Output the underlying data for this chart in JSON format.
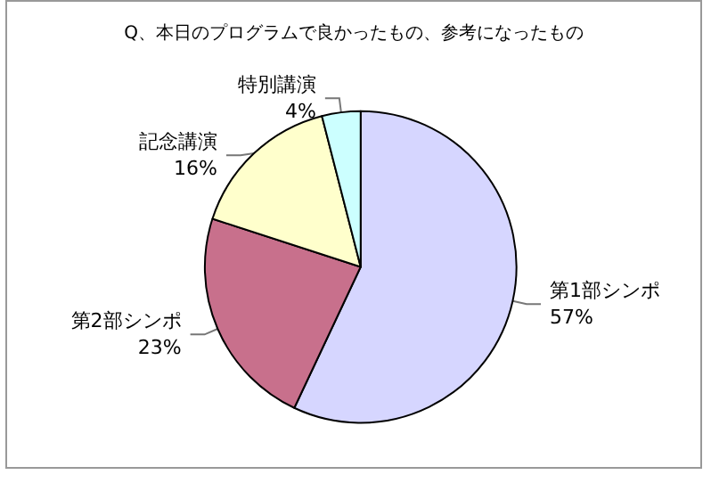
{
  "chart_data": {
    "type": "pie",
    "title": "Q、本日のプログラムで良かったもの、参考になったもの",
    "categories": [
      "第1部シンポ",
      "第2部シンポ",
      "記念講演",
      "特別講演"
    ],
    "values": [
      57,
      23,
      16,
      4
    ],
    "colors": [
      "#d6d6ff",
      "#c8708c",
      "#ffffcc",
      "#ccffff"
    ],
    "value_labels": [
      "57%",
      "23%",
      "16%",
      "4%"
    ],
    "legend": false
  }
}
